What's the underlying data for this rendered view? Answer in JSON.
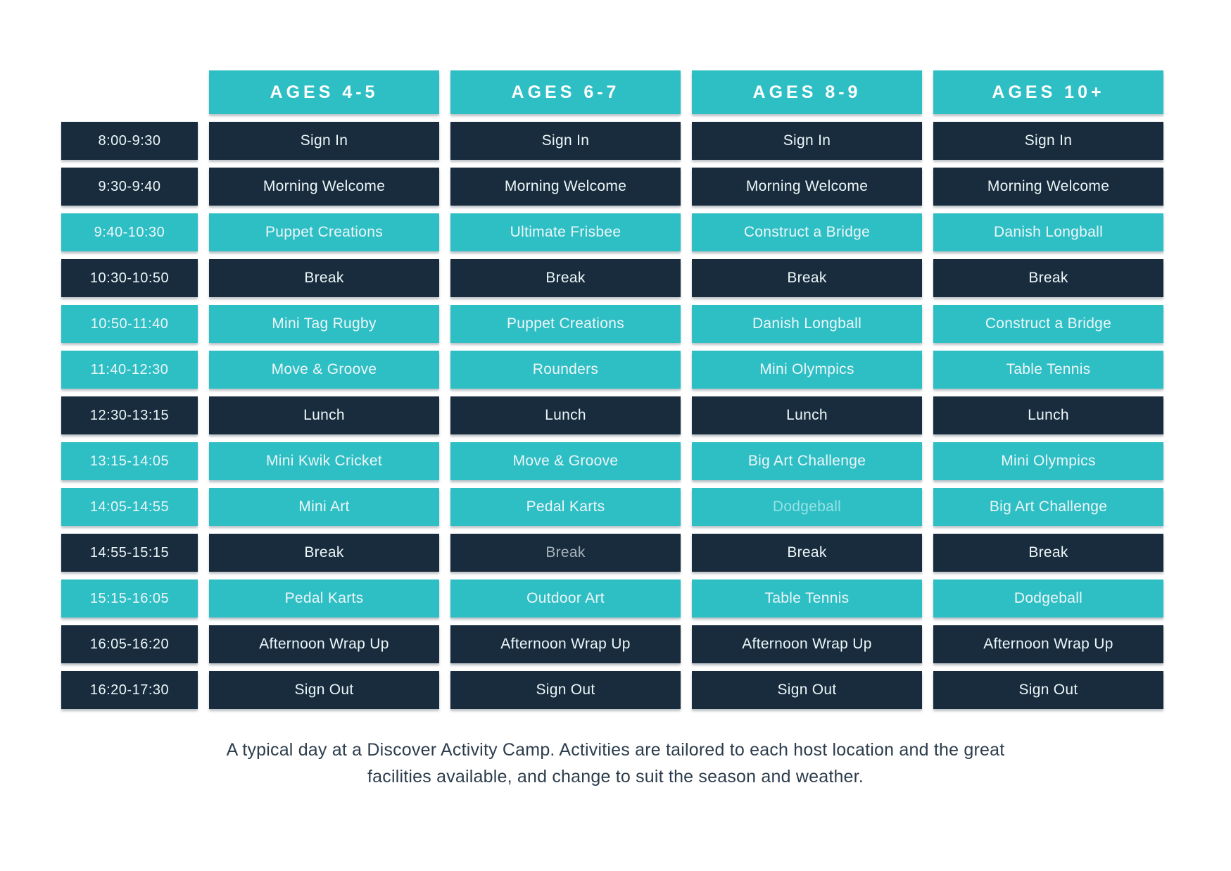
{
  "colors": {
    "teal": "#2ebfc5",
    "navy": "#182c3d",
    "cell_text": "#edf6f8",
    "header_text": "#ffffff",
    "caption_text": "#2d3d4c"
  },
  "header": {
    "columns": [
      "AGES 4-5",
      "AGES 6-7",
      "AGES 8-9",
      "AGES 10+"
    ]
  },
  "schedule": {
    "rows": [
      {
        "time": "8:00-9:30",
        "style": "navy",
        "activities": [
          "Sign In",
          "Sign In",
          "Sign In",
          "Sign In"
        ]
      },
      {
        "time": "9:30-9:40",
        "style": "navy",
        "activities": [
          "Morning Welcome",
          "Morning Welcome",
          "Morning Welcome",
          "Morning Welcome"
        ]
      },
      {
        "time": "9:40-10:30",
        "style": "teal",
        "activities": [
          "Puppet Creations",
          "Ultimate Frisbee",
          "Construct a Bridge",
          "Danish Longball"
        ]
      },
      {
        "time": "10:30-10:50",
        "style": "navy",
        "activities": [
          "Break",
          "Break",
          "Break",
          "Break"
        ]
      },
      {
        "time": "10:50-11:40",
        "style": "teal",
        "activities": [
          "Mini Tag Rugby",
          "Puppet Creations",
          "Danish Longball",
          "Construct a Bridge"
        ]
      },
      {
        "time": "11:40-12:30",
        "style": "teal",
        "activities": [
          "Move & Groove",
          "Rounders",
          "Mini Olympics",
          "Table Tennis"
        ]
      },
      {
        "time": "12:30-13:15",
        "style": "navy",
        "activities": [
          "Lunch",
          "Lunch",
          "Lunch",
          "Lunch"
        ]
      },
      {
        "time": "13:15-14:05",
        "style": "teal",
        "activities": [
          "Mini Kwik Cricket",
          "Move & Groove",
          "Big Art Challenge",
          "Mini Olympics"
        ]
      },
      {
        "time": "14:05-14:55",
        "style": "teal",
        "activities": [
          "Mini Art",
          "Pedal Karts",
          "Dodgeball",
          "Big Art Challenge"
        ],
        "muted": [
          2
        ]
      },
      {
        "time": "14:55-15:15",
        "style": "navy",
        "activities": [
          "Break",
          "Break",
          "Break",
          "Break"
        ],
        "muted": [
          1
        ]
      },
      {
        "time": "15:15-16:05",
        "style": "teal",
        "activities": [
          "Pedal Karts",
          "Outdoor Art",
          "Table Tennis",
          "Dodgeball"
        ]
      },
      {
        "time": "16:05-16:20",
        "style": "navy",
        "activities": [
          "Afternoon Wrap Up",
          "Afternoon Wrap Up",
          "Afternoon Wrap Up",
          "Afternoon Wrap Up"
        ]
      },
      {
        "time": "16:20-17:30",
        "style": "navy",
        "activities": [
          "Sign Out",
          "Sign Out",
          "Sign Out",
          "Sign Out"
        ]
      }
    ]
  },
  "caption": {
    "line1": "A typical day at a Discover Activity Camp. Activities are tailored to each host location and the great",
    "line2": "facilities available,  and change to suit the season and weather."
  }
}
